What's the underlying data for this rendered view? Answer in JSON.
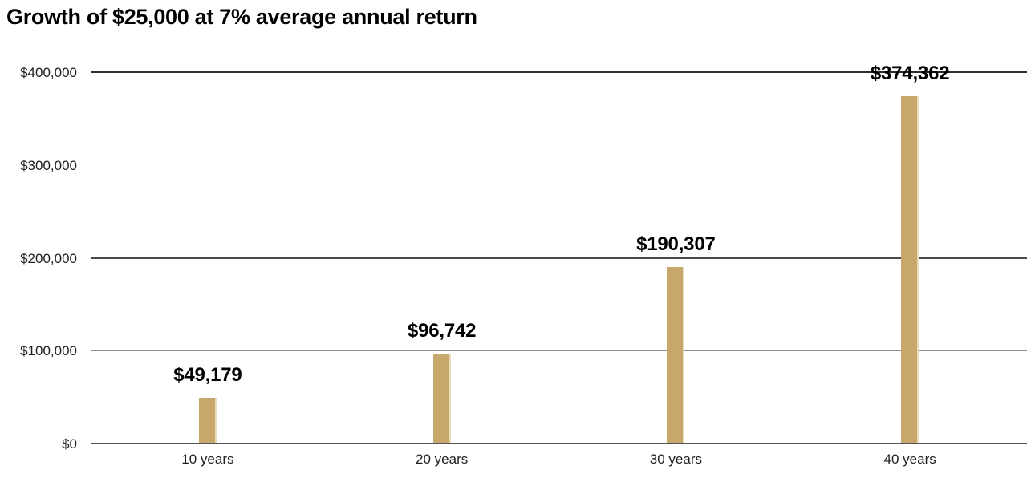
{
  "chart_data": {
    "type": "bar",
    "title": "Growth of $25,000 at 7% average annual return",
    "categories": [
      "10 years",
      "20 years",
      "30 years",
      "40 years"
    ],
    "values": [
      49179,
      96742,
      190307,
      374362
    ],
    "value_labels": [
      "$49,179",
      "$96,742",
      "$190,307",
      "$374,362"
    ],
    "xlabel": "",
    "ylabel": "",
    "ylim": [
      0,
      400000
    ],
    "y_ticks": [
      {
        "value": 400000,
        "label": "$400,000"
      },
      {
        "value": 300000,
        "label": "$300,000"
      },
      {
        "value": 200000,
        "label": "$200,000"
      },
      {
        "value": 100000,
        "label": "$100,000"
      },
      {
        "value": 0,
        "label": "$0"
      }
    ],
    "gridlines": [
      {
        "value": 400000,
        "color": "#2d2d2d"
      },
      {
        "value": 200000,
        "color": "#4a4a4a"
      },
      {
        "value": 100000,
        "color": "#8f8f8f"
      },
      {
        "value": 0,
        "color": "#565656"
      }
    ],
    "grid": "horizontal",
    "legend_position": "none",
    "colors": {
      "bar": "#C7A76B",
      "bar_highlight": "#E7DCBA",
      "tick_text": "#1f1f1f",
      "title_text": "#000000",
      "background": "#ffffff"
    }
  }
}
